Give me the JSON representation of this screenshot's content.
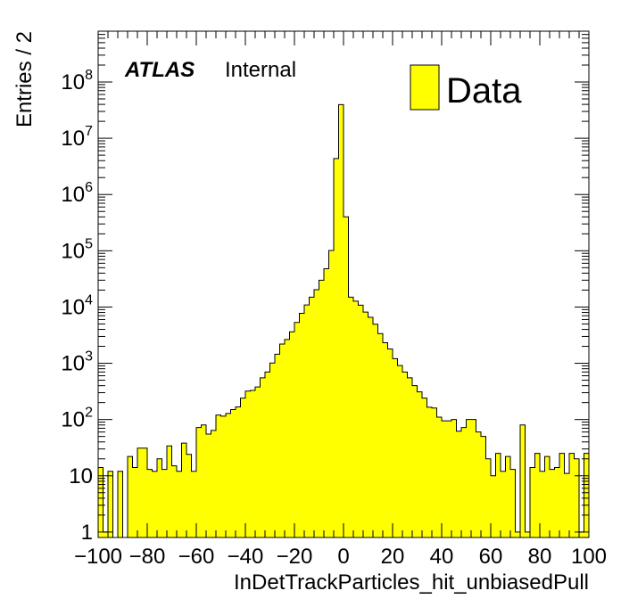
{
  "chart_data": {
    "type": "bar",
    "title": "",
    "xlabel": "InDetTrackParticles_hit_unbiasedPull",
    "ylabel": "Entries / 2",
    "xlim": [
      -100,
      100
    ],
    "ylim": [
      0.8,
      800000000
    ],
    "yscale": "log",
    "bin_width": 2,
    "x_ticks": [
      {
        "value": -100,
        "label": "−100"
      },
      {
        "value": -80,
        "label": "−80"
      },
      {
        "value": -60,
        "label": "−60"
      },
      {
        "value": -40,
        "label": "−40"
      },
      {
        "value": -20,
        "label": "−20"
      },
      {
        "value": 0,
        "label": "0"
      },
      {
        "value": 20,
        "label": "20"
      },
      {
        "value": 40,
        "label": "40"
      },
      {
        "value": 60,
        "label": "60"
      },
      {
        "value": 80,
        "label": "80"
      },
      {
        "value": 100,
        "label": "100"
      }
    ],
    "y_ticks": [
      {
        "value": 1,
        "base": "1",
        "exp": ""
      },
      {
        "value": 10,
        "base": "10",
        "exp": ""
      },
      {
        "value": 100,
        "base": "10",
        "exp": "2"
      },
      {
        "value": 1000,
        "base": "10",
        "exp": "3"
      },
      {
        "value": 10000,
        "base": "10",
        "exp": "4"
      },
      {
        "value": 100000,
        "base": "10",
        "exp": "5"
      },
      {
        "value": 1000000,
        "base": "10",
        "exp": "6"
      },
      {
        "value": 10000000,
        "base": "10",
        "exp": "7"
      },
      {
        "value": 100000000,
        "base": "10",
        "exp": "8"
      }
    ],
    "grid": false,
    "legend": {
      "placement": "top-right",
      "entries": [
        {
          "label": "Data",
          "color": "#ffff00"
        }
      ]
    },
    "annotation": {
      "atlas": "ATLAS",
      "label": "Internal"
    },
    "fill_color": "#ffff00",
    "line_color": "#000000",
    "series": [
      {
        "name": "Data",
        "bin_low_edges": [
          -100,
          -98,
          -96,
          -94,
          -92,
          -90,
          -88,
          -86,
          -84,
          -82,
          -80,
          -78,
          -76,
          -74,
          -72,
          -70,
          -68,
          -66,
          -64,
          -62,
          -60,
          -58,
          -56,
          -54,
          -52,
          -50,
          -48,
          -46,
          -44,
          -42,
          -40,
          -38,
          -36,
          -34,
          -32,
          -30,
          -28,
          -26,
          -24,
          -22,
          -20,
          -18,
          -16,
          -14,
          -12,
          -10,
          -8,
          -6,
          -4,
          -2,
          0,
          2,
          4,
          6,
          8,
          10,
          12,
          14,
          16,
          18,
          20,
          22,
          24,
          26,
          28,
          30,
          32,
          34,
          36,
          38,
          40,
          42,
          44,
          46,
          48,
          50,
          52,
          54,
          56,
          58,
          60,
          62,
          64,
          66,
          68,
          70,
          72,
          74,
          76,
          78,
          80,
          82,
          84,
          86,
          88,
          90,
          92,
          94,
          96,
          98
        ],
        "values": [
          14,
          1,
          12,
          0,
          12,
          0,
          22,
          14,
          31,
          31,
          13,
          12,
          20,
          13,
          34,
          15,
          12,
          38,
          24,
          12,
          72,
          80,
          55,
          64,
          120,
          115,
          128,
          150,
          168,
          240,
          320,
          330,
          380,
          550,
          700,
          1010,
          1450,
          2200,
          2650,
          3620,
          5310,
          7720,
          10900,
          15000,
          20300,
          30000,
          48000,
          101000,
          4350000,
          39600000,
          402000,
          15000,
          12700,
          10800,
          8120,
          6550,
          4950,
          3370,
          2320,
          1800,
          1210,
          910,
          700,
          550,
          400,
          310,
          240,
          165,
          160,
          110,
          95,
          95,
          100,
          62,
          72,
          100,
          100,
          60,
          50,
          20,
          10,
          25,
          12,
          22,
          13,
          1,
          80,
          1,
          14,
          25,
          12,
          22,
          13,
          14,
          25,
          11,
          25,
          20,
          1,
          25
        ]
      }
    ]
  }
}
